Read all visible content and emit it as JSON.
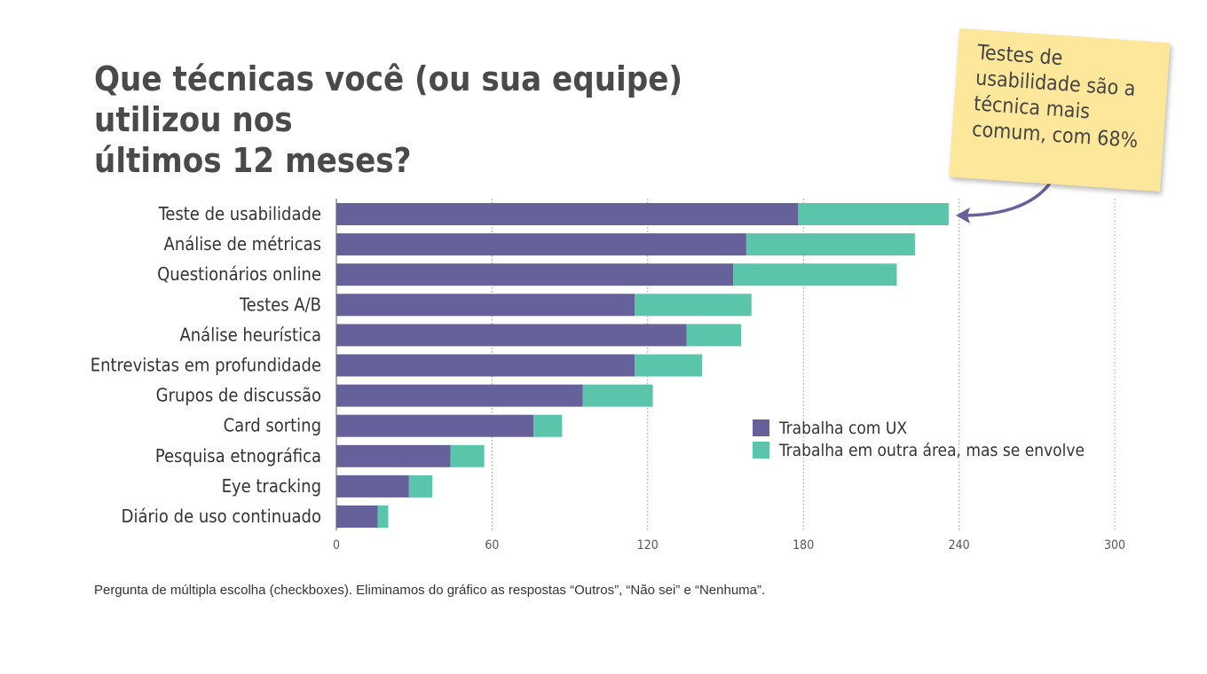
{
  "title": {
    "line1": "Que técnicas você (ou sua equipe) utilizou nos",
    "line2": "últimos 12 meses?"
  },
  "annotation": {
    "text": "Testes de\nusabilidade são a\ntécnica mais\ncomum, com 68%"
  },
  "footnote": "Pergunta de múltipla escolha (checkboxes). Eliminamos do gráfico as respostas “Outros”, “Não sei” e “Nenhuma”.",
  "colors": {
    "ux": "#66609b",
    "other": "#5bc5ab",
    "annotation_bg": "#fce79a",
    "arrow": "#66609b"
  },
  "chart_data": {
    "type": "bar",
    "orientation": "horizontal",
    "stacked": true,
    "categories": [
      "Teste de usabilidade",
      "Análise de métricas",
      "Questionários online",
      "Testes A/B",
      "Análise heurística",
      "Entrevistas em profundidade",
      "Grupos de discussão",
      "Card sorting",
      "Pesquisa etnográfica",
      "Eye tracking",
      "Diário de uso continuado"
    ],
    "series": [
      {
        "name": "Trabalha com UX",
        "values": [
          178,
          158,
          153,
          115,
          135,
          115,
          95,
          76,
          44,
          28,
          16
        ]
      },
      {
        "name": "Trabalha em outra área, mas se envolve",
        "values": [
          58,
          65,
          63,
          45,
          21,
          26,
          27,
          11,
          13,
          9,
          4
        ]
      }
    ],
    "xlim": [
      0,
      300
    ],
    "xticks": [
      "0",
      "60",
      "120",
      "180",
      "240",
      "300"
    ],
    "grid": "vertical dotted",
    "legend_position": "bottom-right"
  }
}
